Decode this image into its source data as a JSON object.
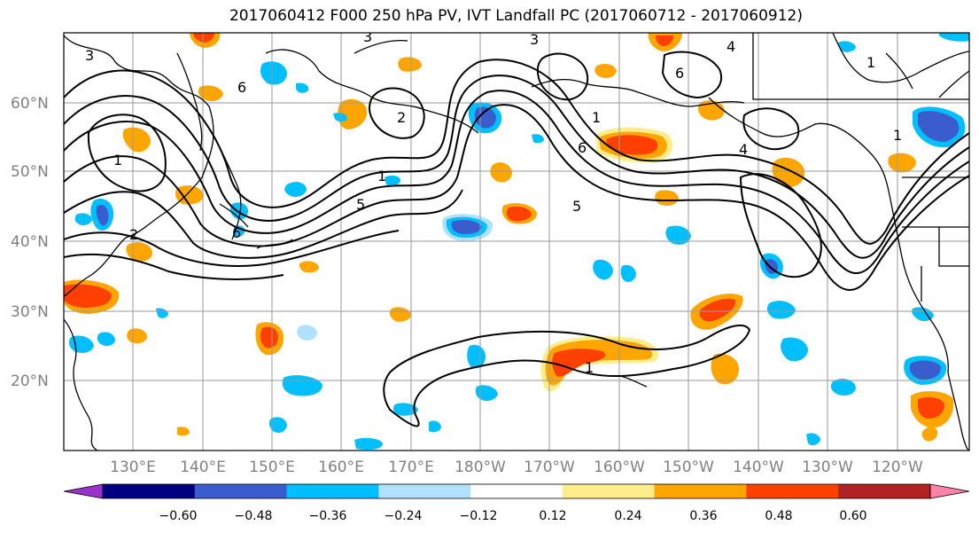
{
  "title": "2017060412 F000 250 hPa PV, IVT Landfall PC (2017060712 - 2017060912)",
  "map": {
    "lat_labels": [
      "60°N",
      "50°N",
      "40°N",
      "30°N",
      "20°N"
    ],
    "lon_labels": [
      "130°E",
      "140°E",
      "150°E",
      "160°E",
      "170°E",
      "180°W",
      "170°W",
      "160°W",
      "150°W",
      "140°W",
      "130°W",
      "120°W"
    ],
    "contour_labels": [
      "3",
      "3",
      "3",
      "6",
      "2",
      "1",
      "5",
      "6",
      "2",
      "1",
      "1",
      "6",
      "4",
      "6",
      "4",
      "5",
      "1",
      "1",
      "1"
    ]
  },
  "colorbar": {
    "colors": [
      "#9932CC",
      "#000080",
      "#3A5CCC",
      "#00BFFF",
      "#B0E2FF",
      "#FFFFFF",
      "#FFEC8B",
      "#FFA500",
      "#FF4000",
      "#B22222",
      "#FF82AB"
    ],
    "tick_labels": [
      "−0.60",
      "−0.48",
      "−0.36",
      "−0.24",
      "−0.12",
      "0.12",
      "0.24",
      "0.36",
      "0.48",
      "0.60"
    ]
  }
}
